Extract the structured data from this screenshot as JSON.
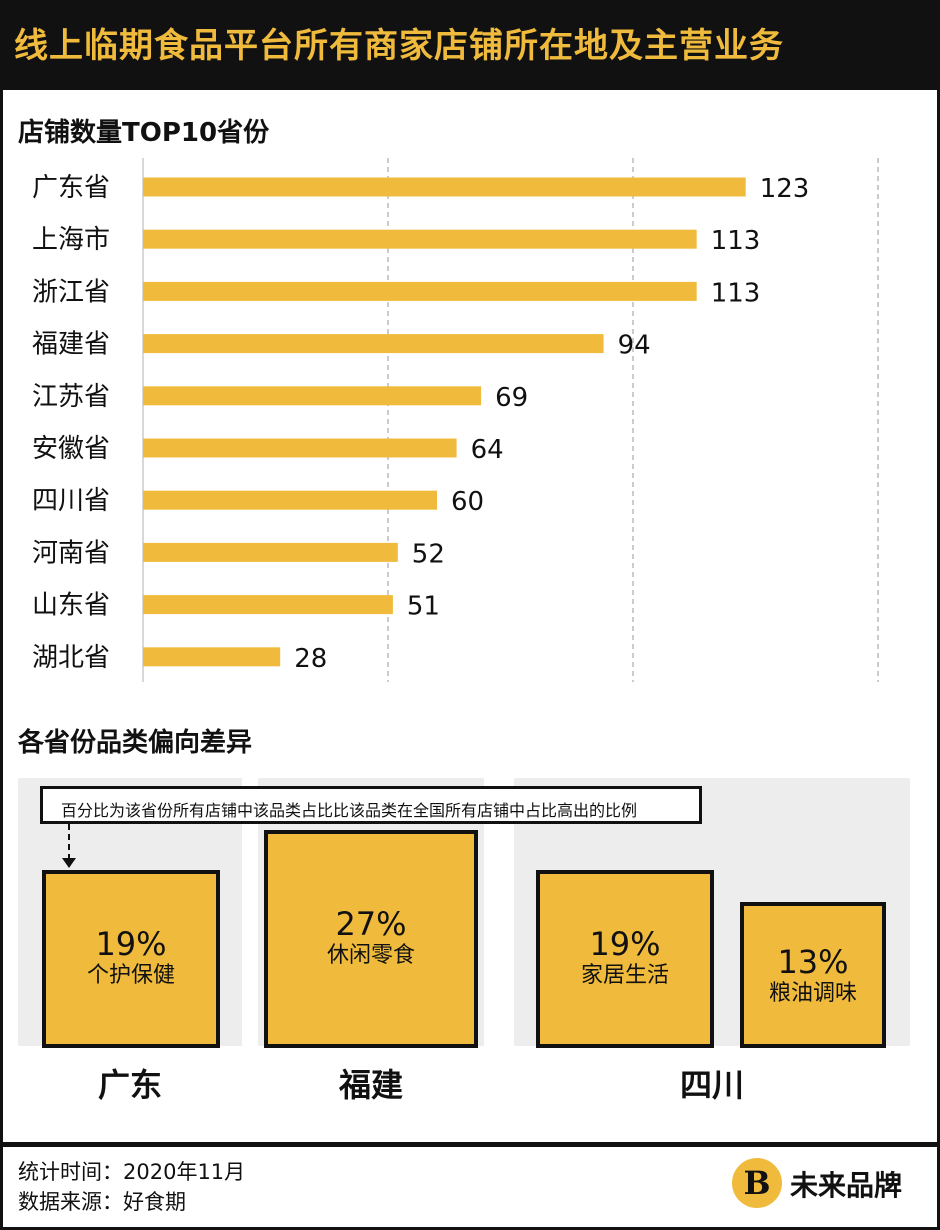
{
  "header": {
    "title": "线上临期食品平台所有商家店铺所在地及主营业务"
  },
  "section1": {
    "title": "店铺数量TOP10省份"
  },
  "chart_data": {
    "type": "bar",
    "orientation": "horizontal",
    "title": "店铺数量TOP10省份",
    "categories": [
      "广东省",
      "上海市",
      "浙江省",
      "福建省",
      "江苏省",
      "安徽省",
      "四川省",
      "河南省",
      "山东省",
      "湖北省"
    ],
    "values": [
      123,
      113,
      113,
      94,
      69,
      64,
      60,
      52,
      51,
      28
    ],
    "xlim": [
      0,
      150
    ],
    "grid": true,
    "bar_color": "#f0bb3c"
  },
  "section2": {
    "title": "各省份品类偏向差异",
    "note": "百分比为该省份所有店铺中该品类占比比该品类在全国所有店铺中占比高出的比例",
    "provinces": [
      {
        "name": "广东",
        "items": [
          {
            "pct": "19%",
            "label": "个护保健"
          }
        ]
      },
      {
        "name": "福建",
        "items": [
          {
            "pct": "27%",
            "label": "休闲零食"
          }
        ]
      },
      {
        "name": "四川",
        "items": [
          {
            "pct": "19%",
            "label": "家居生活"
          },
          {
            "pct": "13%",
            "label": "粮油调味"
          }
        ]
      }
    ]
  },
  "footer": {
    "time": "统计时间：2020年11月",
    "source": "数据来源：好食期",
    "brand": "未来品牌",
    "logo_letter": "B"
  },
  "colors": {
    "accent": "#f0bb3c",
    "dark": "#111111",
    "panel": "#ededed"
  }
}
